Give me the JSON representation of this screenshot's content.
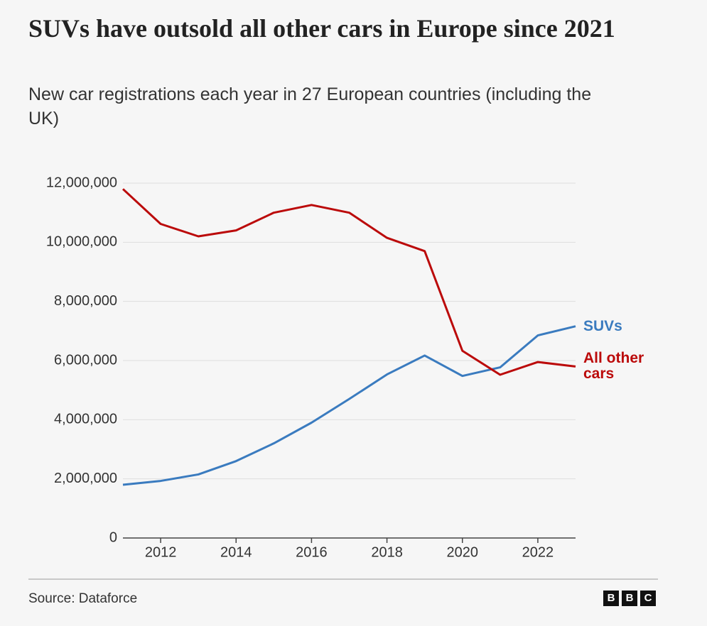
{
  "chart_data": {
    "type": "line",
    "title": "SUVs have outsold all other cars in Europe since 2021",
    "subtitle": "New car registrations each year in 27 European countries (including the UK)",
    "x": [
      2011,
      2012,
      2013,
      2014,
      2015,
      2016,
      2017,
      2018,
      2019,
      2020,
      2021,
      2022,
      2023
    ],
    "series": [
      {
        "name": "SUVs",
        "color": "#3a7bbf",
        "values": [
          1800000,
          1930000,
          2150000,
          2600000,
          3200000,
          3900000,
          4700000,
          5530000,
          6170000,
          5480000,
          5770000,
          6850000,
          7160000
        ]
      },
      {
        "name": "All other cars",
        "color": "#bb0a0a",
        "values": [
          11800000,
          10620000,
          10200000,
          10400000,
          11000000,
          11260000,
          11000000,
          10150000,
          9700000,
          6330000,
          5520000,
          5950000,
          5800000
        ]
      }
    ],
    "xlim": [
      2011,
      2023
    ],
    "xticks": [
      2012,
      2014,
      2016,
      2018,
      2020,
      2022
    ],
    "ylim": [
      0,
      12000000
    ],
    "yticks": [
      0,
      {
        "value": 2000000,
        "label": "2,000,000"
      },
      {
        "value": 4000000,
        "label": "4,000,000"
      },
      {
        "value": 6000000,
        "label": "6,000,000"
      },
      {
        "value": 8000000,
        "label": "8,000,000"
      },
      {
        "value": 10000000,
        "label": "10,000,000"
      },
      {
        "value": 12000000,
        "label": "12,000,000"
      }
    ],
    "grid": true,
    "source": "Source: Dataforce",
    "logo": [
      "B",
      "B",
      "C"
    ]
  }
}
